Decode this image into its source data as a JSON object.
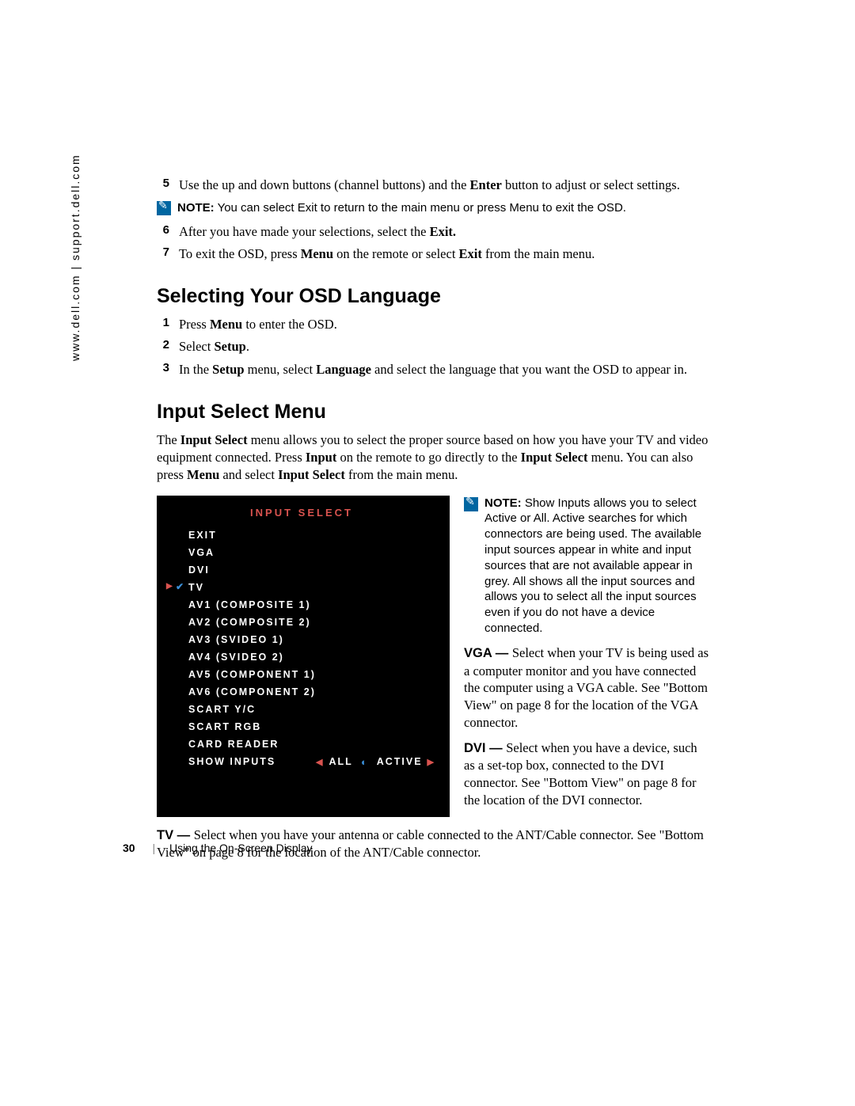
{
  "sidebar": {
    "url_text": "www.dell.com | support.dell.com"
  },
  "steps_top": {
    "s5_num": "5",
    "s5_a": "Use the up and down buttons (channel buttons) and the ",
    "s5_b": "Enter",
    "s5_c": " button to adjust or select settings.",
    "note1_label": "NOTE:",
    "note1_text": " You can select Exit to return to the main menu or press Menu to exit the OSD.",
    "s6_num": "6",
    "s6_a": "After you have made your selections, select the ",
    "s6_b": "Exit.",
    "s7_num": "7",
    "s7_a": "To exit the OSD, press ",
    "s7_b": "Menu",
    "s7_c": " on the remote or select ",
    "s7_d": "Exit",
    "s7_e": " from the main menu."
  },
  "h_lang": "Selecting Your OSD Language",
  "lang_steps": {
    "s1_num": "1",
    "s1_a": "Press ",
    "s1_b": "Menu",
    "s1_c": " to enter the OSD.",
    "s2_num": "2",
    "s2_a": "Select ",
    "s2_b": "Setup",
    "s2_c": ".",
    "s3_num": "3",
    "s3_a": "In the ",
    "s3_b": "Setup",
    "s3_c": " menu, select ",
    "s3_d": "Language",
    "s3_e": " and select the language that you want the OSD to appear in."
  },
  "h_input": "Input Select Menu",
  "input_para": {
    "a": "The ",
    "b": "Input Select",
    "c": " menu allows you to select the proper source based on how you have your TV and video equipment connected. Press ",
    "d": "Input",
    "e": " on the remote to go directly to the ",
    "f": "Input Select",
    "g": " menu. You can also press ",
    "h": "Menu",
    "i": " and select ",
    "j": "Input Select",
    "k": " from the main menu."
  },
  "osd": {
    "title": "INPUT SELECT",
    "items": {
      "i0": "EXIT",
      "i1": "VGA",
      "i2": "DVI",
      "i3": "TV",
      "i4": "AV1 (COMPOSITE 1)",
      "i5": "AV2 (COMPOSITE 2)",
      "i6": "AV3 (SVIDEO 1)",
      "i7": "AV4 (SVIDEO 2)",
      "i8": "AV5 (COMPONENT 1)",
      "i9": "AV6 (COMPONENT 2)",
      "i10": "SCART Y/C",
      "i11": "SCART RGB",
      "i12": "CARD READER"
    },
    "bottom_label": "SHOW INPUTS",
    "bottom_all": "ALL",
    "bottom_active": "ACTIVE",
    "selected_index": 3,
    "colors": {
      "bg": "#000000",
      "fg": "#ffffff",
      "accent": "#d9534f",
      "check": "#3a8fd8"
    }
  },
  "side_note": {
    "label": "NOTE:",
    "text": " Show Inputs allows you to select Active or All. Active searches for which connectors are being used. The available input sources appear in white and input sources that are not available appear in grey. All shows all the input sources and allows you to select all the input sources even if you do not have a device connected."
  },
  "vga_def": {
    "term": "VGA — ",
    "body": " Select when your TV is being used as a computer monitor and you have connected the computer using a VGA cable. See \"Bottom View\" on page 8 for the location of the VGA connector."
  },
  "dvi_def": {
    "term": "DVI — ",
    "body": " Select when you have a device, such as a set-top box, connected to the DVI connector. See \"Bottom View\" on page 8 for the location of the DVI connector."
  },
  "tv_def": {
    "term": "TV — ",
    "body": " Select when you have your antenna or cable connected to the ANT/Cable connector. See \"Bottom View\" on page 8 for the location of the ANT/Cable connector."
  },
  "footer": {
    "page": "30",
    "section": "Using the On-Screen Display"
  }
}
